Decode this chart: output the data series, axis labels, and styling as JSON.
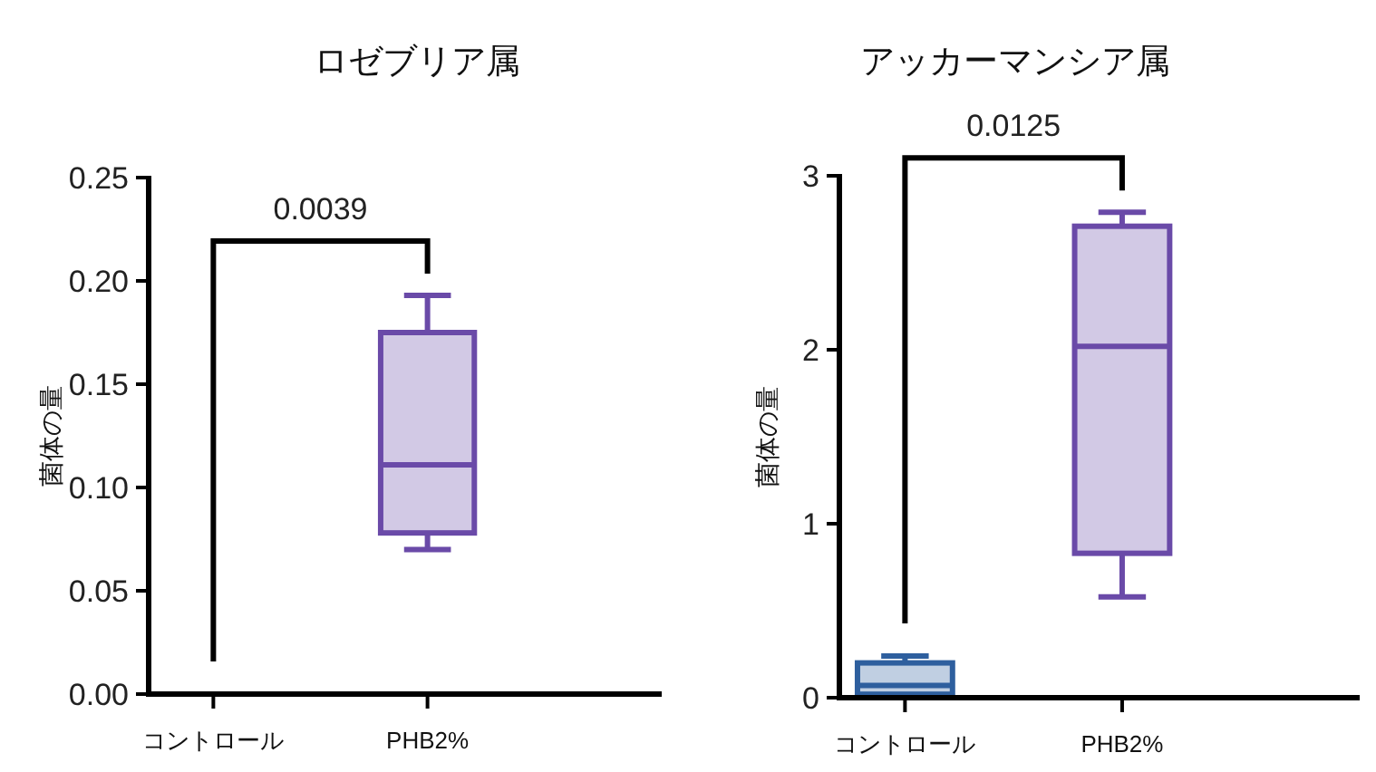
{
  "chart_data": [
    {
      "type": "box",
      "title": "ロゼブリア属",
      "ylabel": "菌体の量",
      "categories": [
        "コントロール",
        "PHB2%"
      ],
      "colors": [
        "#2e5f9e",
        "#6a4aa8"
      ],
      "boxes": [
        {
          "low": 0,
          "q1": 0,
          "median": 0,
          "q3": 0,
          "high": 0
        },
        {
          "low": 0.07,
          "q1": 0.078,
          "median": 0.111,
          "q3": 0.175,
          "high": 0.193
        }
      ],
      "ylim": [
        0,
        0.25
      ],
      "yticks": [
        {
          "value": 0,
          "label": "0.00"
        },
        0.05,
        {
          "value": 0.1,
          "label": "0.10"
        },
        0.15,
        {
          "value": 0.2,
          "label": "0.20"
        },
        0.25
      ],
      "annotations": [
        "0.0039"
      ],
      "grid": false
    },
    {
      "type": "box",
      "title": "アッカーマンシア属",
      "ylabel": "菌体の量",
      "categories": [
        "コントロール",
        "PHB2%"
      ],
      "colors": [
        "#2e5f9e",
        "#6a4aa8"
      ],
      "boxes": [
        {
          "low": 0,
          "q1": 0.02,
          "median": 0.07,
          "q3": 0.2,
          "high": 0.24
        },
        {
          "low": 0.58,
          "q1": 0.83,
          "median": 2.02,
          "q3": 2.71,
          "high": 2.79
        }
      ],
      "ylim": [
        0,
        3
      ],
      "yticks": [
        0,
        1,
        2,
        3
      ],
      "annotations": [
        "0.0125"
      ],
      "grid": false
    }
  ]
}
